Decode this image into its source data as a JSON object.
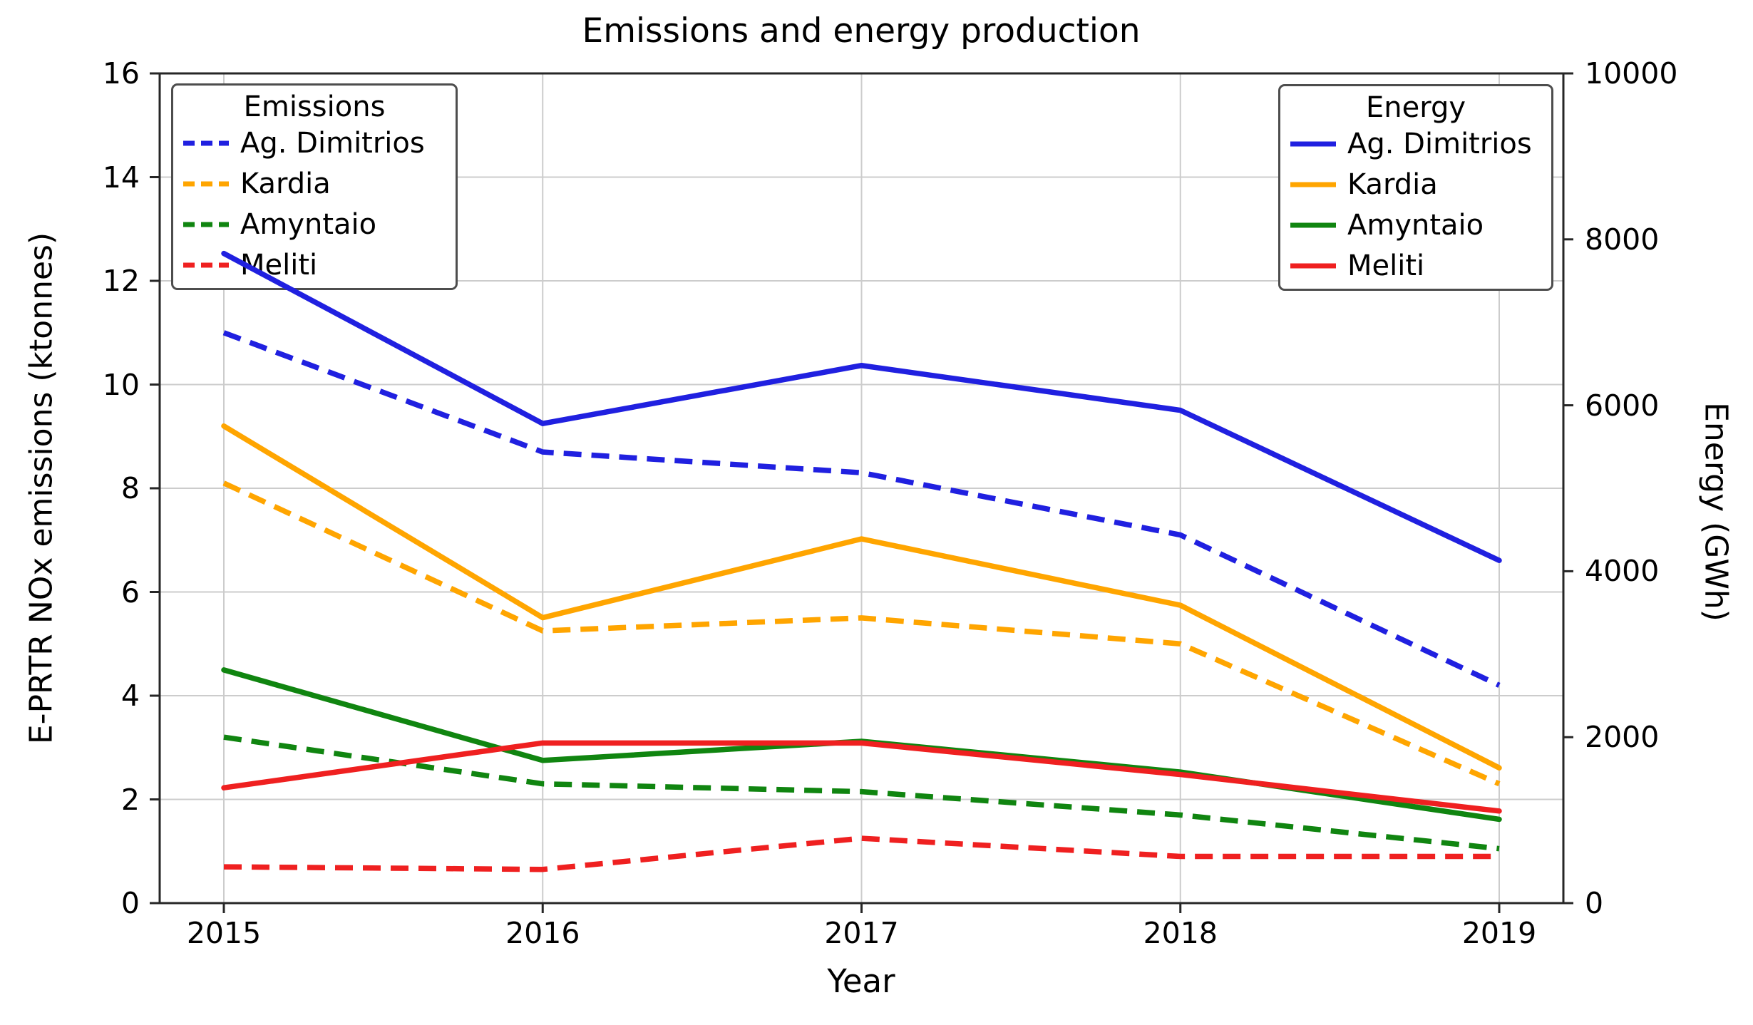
{
  "title": "Emissions and energy production",
  "colors": {
    "blue": "#2020e0",
    "orange": "#ffa500",
    "green": "#108510",
    "red": "#ef2020",
    "grid": "#cccccc",
    "spine": "#262626"
  },
  "axes": {
    "x": {
      "label": "Year",
      "ticks": [
        "2015",
        "2016",
        "2017",
        "2018",
        "2019"
      ]
    },
    "y_left": {
      "label": "E-PRTR NOx emissions (ktonnes)",
      "ticks": [
        "0",
        "2",
        "4",
        "6",
        "8",
        "10",
        "12",
        "14",
        "16"
      ],
      "min": 0,
      "max": 16
    },
    "y_right": {
      "label": "Energy (GWh)",
      "ticks": [
        "0",
        "2000",
        "4000",
        "6000",
        "8000",
        "10000"
      ],
      "min": 0,
      "max": 10000
    }
  },
  "legends": {
    "emissions": {
      "title": "Emissions",
      "items": [
        "Ag. Dimitrios",
        "Kardia",
        "Amyntaio",
        "Meliti"
      ]
    },
    "energy": {
      "title": "Energy",
      "items": [
        "Ag. Dimitrios",
        "Kardia",
        "Amyntaio",
        "Meliti"
      ]
    }
  },
  "chart_data": {
    "type": "line",
    "title": "Emissions and energy production",
    "xlabel": "Year",
    "ylabel_left": "E-PRTR NOx emissions (ktonnes)",
    "ylabel_right": "Energy (GWh)",
    "x": [
      2015,
      2016,
      2017,
      2018,
      2019
    ],
    "ylim_left": [
      0,
      16
    ],
    "ylim_right": [
      0,
      10000
    ],
    "grid": true,
    "legend_positions": {
      "emissions": "upper left",
      "energy": "upper right"
    },
    "series": [
      {
        "name": "Ag. Dimitrios",
        "group": "Emissions",
        "axis": "left",
        "style": "dashed",
        "color_key": "blue",
        "units": "ktonnes",
        "values": [
          11.0,
          8.7,
          8.3,
          7.1,
          4.2
        ]
      },
      {
        "name": "Kardia",
        "group": "Emissions",
        "axis": "left",
        "style": "dashed",
        "color_key": "orange",
        "units": "ktonnes",
        "values": [
          8.1,
          5.25,
          5.5,
          5.0,
          2.3
        ]
      },
      {
        "name": "Amyntaio",
        "group": "Emissions",
        "axis": "left",
        "style": "dashed",
        "color_key": "green",
        "units": "ktonnes",
        "values": [
          3.2,
          2.3,
          2.15,
          1.7,
          1.05
        ]
      },
      {
        "name": "Meliti",
        "group": "Emissions",
        "axis": "left",
        "style": "dashed",
        "color_key": "red",
        "units": "ktonnes",
        "values": [
          0.7,
          0.65,
          1.25,
          0.9,
          0.9
        ]
      },
      {
        "name": "Ag. Dimitrios",
        "group": "Energy",
        "axis": "right",
        "style": "solid",
        "color_key": "blue",
        "units": "GWh",
        "values": [
          7830,
          5780,
          6480,
          5940,
          4130
        ]
      },
      {
        "name": "Kardia",
        "group": "Energy",
        "axis": "right",
        "style": "solid",
        "color_key": "orange",
        "units": "GWh",
        "values": [
          5750,
          3440,
          4390,
          3590,
          1630
        ]
      },
      {
        "name": "Amyntaio",
        "group": "Energy",
        "axis": "right",
        "style": "solid",
        "color_key": "green",
        "units": "GWh",
        "values": [
          2810,
          1720,
          1950,
          1580,
          1010
        ]
      },
      {
        "name": "Meliti",
        "group": "Energy",
        "axis": "right",
        "style": "solid",
        "color_key": "red",
        "units": "GWh",
        "values": [
          1390,
          1930,
          1930,
          1550,
          1110
        ]
      }
    ]
  }
}
